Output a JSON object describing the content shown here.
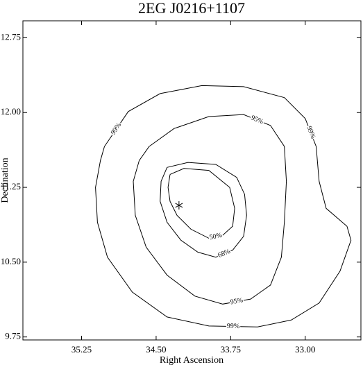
{
  "chart_data": {
    "type": "contour",
    "title": "2EG J0216+1107",
    "x_label": "Right Ascension",
    "y_label": "Declination",
    "xlim": [
      35.84,
      32.44
    ],
    "ylim": [
      9.72,
      12.92
    ],
    "xticks": [
      35.25,
      {
        "value": 34.5,
        "label": "34.50"
      },
      33.75,
      {
        "value": 33,
        "label": "33.00"
      }
    ],
    "yticks": [
      12.75,
      {
        "value": 12,
        "label": "12.00"
      },
      11.25,
      {
        "value": 10.5,
        "label": "10.50"
      },
      9.75
    ],
    "marker": {
      "x": 34.27,
      "y": 11.07
    },
    "series": [
      {
        "name": "50%",
        "color": "#000000",
        "x": [
          34.36,
          34.22,
          33.97,
          33.76,
          33.71,
          33.73,
          33.83,
          33.97,
          34.15,
          34.29,
          34.36,
          34.38,
          34.36
        ],
        "values": [
          11.38,
          11.44,
          11.42,
          11.25,
          11.04,
          10.86,
          10.77,
          10.74,
          10.83,
          10.97,
          11.11,
          11.25,
          11.38
        ]
      },
      {
        "name": "68%",
        "color": "#000000",
        "x": [
          34.39,
          34.18,
          33.9,
          33.69,
          33.61,
          33.59,
          33.62,
          33.73,
          33.9,
          34.08,
          34.25,
          34.39,
          34.46,
          34.45,
          34.39
        ],
        "values": [
          11.45,
          11.5,
          11.48,
          11.35,
          11.18,
          10.97,
          10.76,
          10.62,
          10.55,
          10.6,
          10.72,
          10.9,
          11.11,
          11.31,
          11.45
        ]
      },
      {
        "name": "95%",
        "color": "#000000",
        "x": [
          34.57,
          34.32,
          33.97,
          33.62,
          33.35,
          33.21,
          33.19,
          33.21,
          33.24,
          33.35,
          33.55,
          33.83,
          34.11,
          34.39,
          34.6,
          34.71,
          34.73,
          34.67,
          34.57
        ],
        "values": [
          11.66,
          11.84,
          11.96,
          11.98,
          11.87,
          11.66,
          11.31,
          10.9,
          10.55,
          10.27,
          10.13,
          10.08,
          10.16,
          10.37,
          10.65,
          10.97,
          11.31,
          11.52,
          11.66
        ]
      },
      {
        "name": "99%",
        "color": "#000000",
        "x": [
          35.02,
          34.78,
          34.46,
          34.04,
          33.62,
          33.21,
          33.0,
          32.89,
          32.86,
          32.79,
          32.58,
          32.54,
          32.65,
          32.86,
          33.14,
          33.48,
          33.97,
          34.39,
          34.74,
          34.99,
          35.09,
          35.11,
          35.06,
          35.02
        ],
        "values": [
          11.66,
          12.01,
          12.19,
          12.27,
          12.26,
          12.15,
          11.94,
          11.66,
          11.31,
          11.04,
          10.86,
          10.72,
          10.41,
          10.09,
          9.92,
          9.85,
          9.86,
          9.95,
          10.2,
          10.55,
          10.9,
          11.25,
          11.52,
          11.66
        ]
      }
    ]
  }
}
